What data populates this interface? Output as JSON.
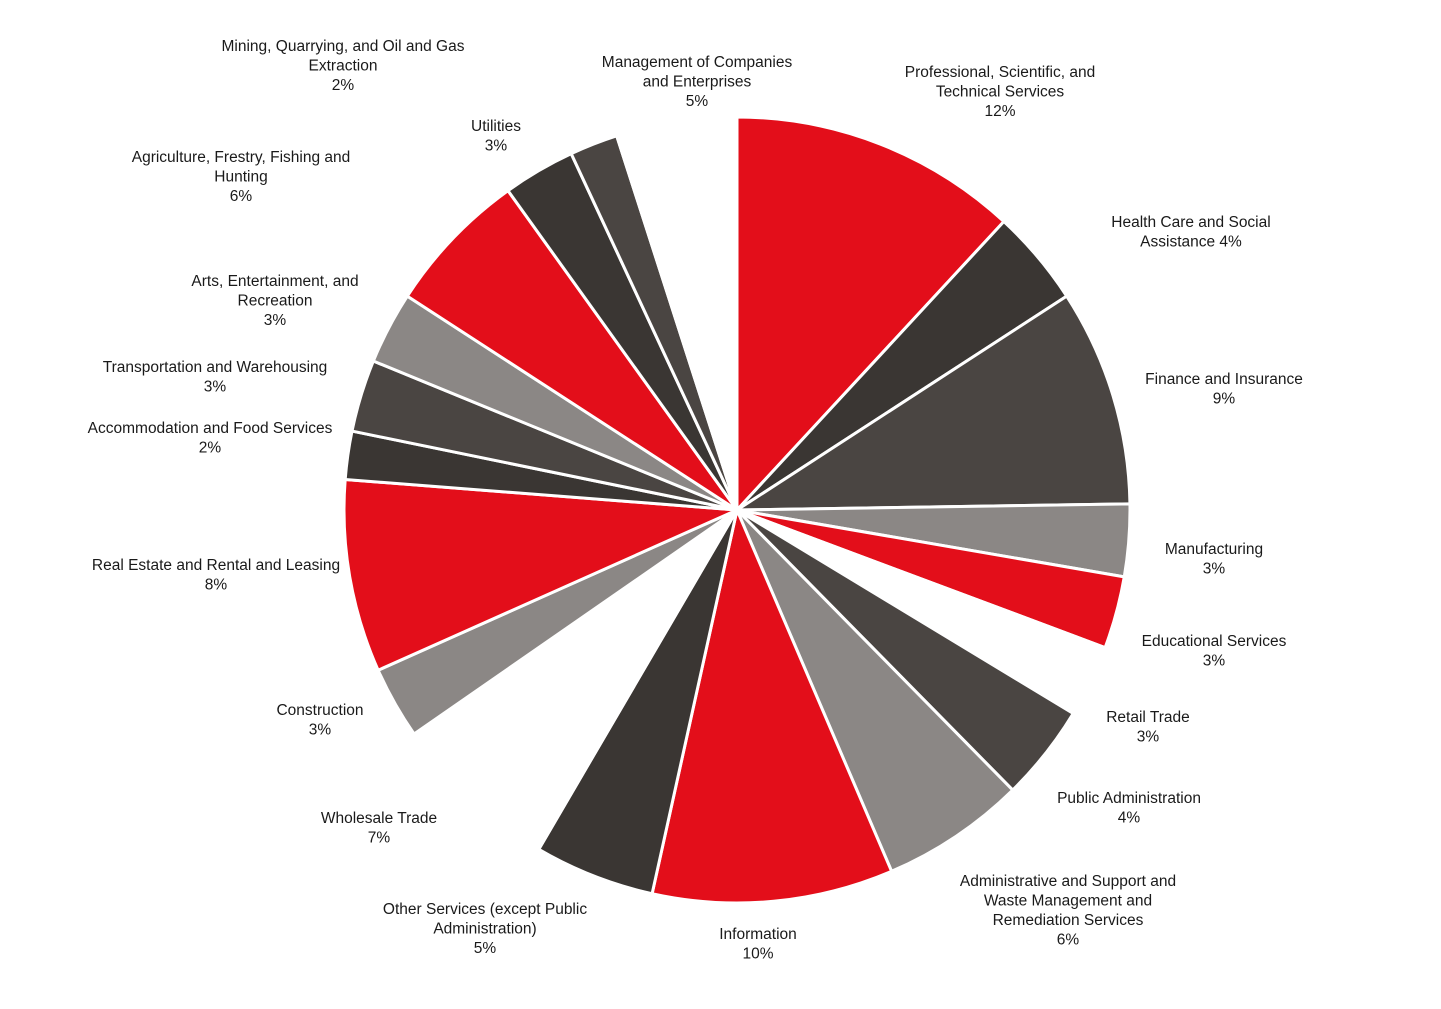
{
  "chart_data": {
    "type": "pie",
    "colors": {
      "red": "#E30E1A",
      "dark": "#3A3633",
      "darkgray": "#4A4542",
      "gray": "#8B8785"
    },
    "slices": [
      {
        "label": [
          "Professional, Scientific, and",
          "Technical Services",
          "12%"
        ],
        "value": 12,
        "color": "red"
      },
      {
        "label": [
          "Health Care and Social",
          "Assistance 4%"
        ],
        "value": 4,
        "color": "dark"
      },
      {
        "label": [
          "Finance and Insurance",
          "9%"
        ],
        "value": 9,
        "color": "darkgray"
      },
      {
        "label": [
          "Manufacturing",
          "3%"
        ],
        "value": 3,
        "color": "gray"
      },
      {
        "label": [
          "Educational Services",
          "3%"
        ],
        "value": 3,
        "color": "red"
      },
      {
        "label": [
          "Retail Trade",
          "3%"
        ],
        "value": 3,
        "color": "none"
      },
      {
        "label": [
          "Public Administration",
          "4%"
        ],
        "value": 4,
        "color": "darkgray"
      },
      {
        "label": [
          "Administrative and Support and",
          "Waste Management and",
          "Remediation Services",
          "6%"
        ],
        "value": 6,
        "color": "gray"
      },
      {
        "label": [
          "Information",
          "10%"
        ],
        "value": 10,
        "color": "red"
      },
      {
        "label": [
          "Other Services (except Public",
          "Administration)",
          "5%"
        ],
        "value": 5,
        "color": "dark"
      },
      {
        "label": [
          "Wholesale Trade",
          "7%"
        ],
        "value": 7,
        "color": "none"
      },
      {
        "label": [
          "Construction",
          "3%"
        ],
        "value": 3,
        "color": "gray"
      },
      {
        "label": [
          "Real Estate and Rental and Leasing",
          "8%"
        ],
        "value": 8,
        "color": "red"
      },
      {
        "label": [
          "Accommodation and Food Services",
          "2%"
        ],
        "value": 2,
        "color": "dark"
      },
      {
        "label": [
          "Transportation and Warehousing",
          "3%"
        ],
        "value": 3,
        "color": "darkgray"
      },
      {
        "label": [
          "Arts, Entertainment, and",
          "Recreation",
          "3%"
        ],
        "value": 3,
        "color": "gray"
      },
      {
        "label": [
          "Agriculture, Frestry, Fishing and",
          "Hunting",
          "6%"
        ],
        "value": 6,
        "color": "red"
      },
      {
        "label": [
          "Utilities",
          "3%"
        ],
        "value": 3,
        "color": "dark"
      },
      {
        "label": [
          "Mining, Quarrying, and Oil and Gas",
          "Extraction",
          "2%"
        ],
        "value": 2,
        "color": "darkgray"
      },
      {
        "label": [
          "Management of Companies",
          "and Enterprises",
          "5%"
        ],
        "value": 5,
        "color": "none"
      }
    ]
  }
}
